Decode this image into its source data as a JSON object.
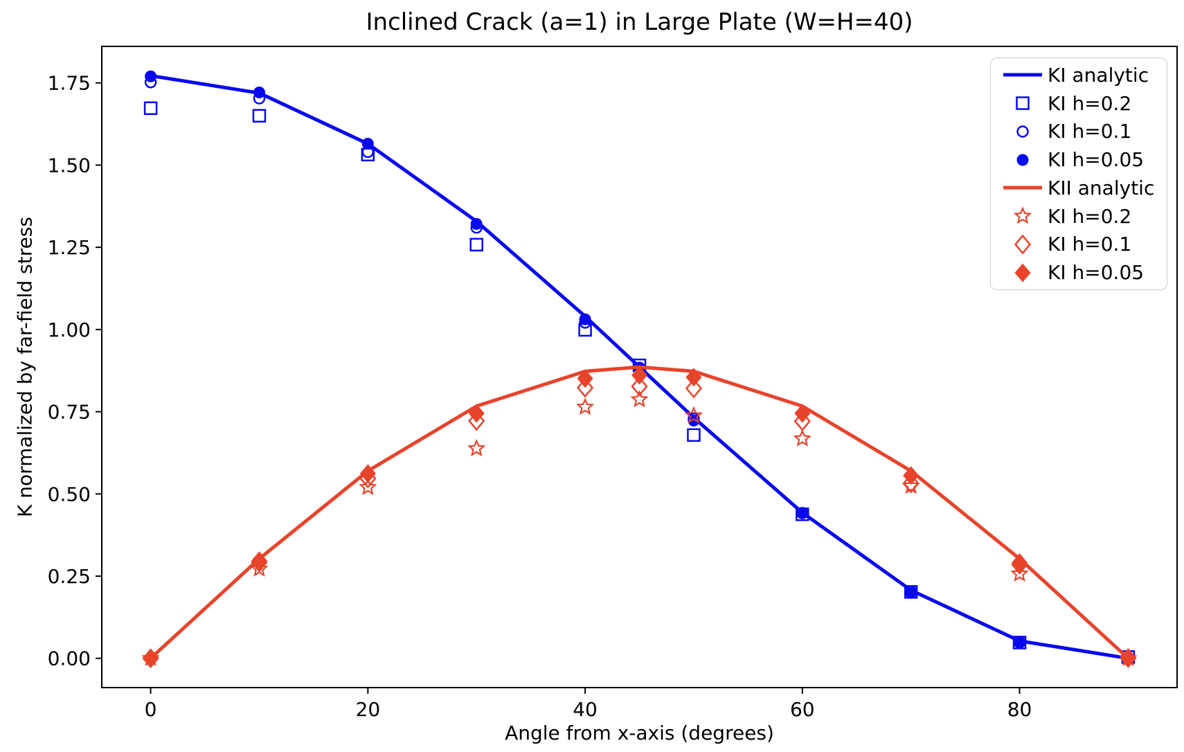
{
  "chart_data": {
    "type": "line",
    "title": "Inclined Crack (a=1) in Large Plate (W=H=40)",
    "xlabel": "Angle from x-axis (degrees)",
    "ylabel": "K normalized by far-field stress",
    "xlim": [
      -4.5,
      94.5
    ],
    "ylim": [
      -0.089,
      1.861
    ],
    "xticks": [
      0,
      20,
      40,
      60,
      80
    ],
    "xtick_labels": [
      "0",
      "20",
      "40",
      "60",
      "80"
    ],
    "yticks": [
      0.0,
      0.25,
      0.5,
      0.75,
      1.0,
      1.25,
      1.5,
      1.75
    ],
    "ytick_labels": [
      "0.00",
      "0.25",
      "0.50",
      "0.75",
      "1.00",
      "1.25",
      "1.50",
      "1.75"
    ],
    "grid": false,
    "legend_position": "upper right",
    "colors": {
      "KI": "#0808f0",
      "KII": "#e8432b"
    },
    "x": [
      0,
      10,
      20,
      30,
      40,
      45,
      50,
      60,
      70,
      80,
      90
    ],
    "series": [
      {
        "name": "KI analytic",
        "color": "#0808f0",
        "style": "line",
        "values": [
          1.772,
          1.719,
          1.565,
          1.329,
          1.04,
          0.886,
          0.732,
          0.443,
          0.207,
          0.053,
          0.0
        ]
      },
      {
        "name": "KI h=0.2",
        "color": "#0808f0",
        "style": "square-open",
        "values": [
          1.673,
          1.65,
          1.532,
          1.258,
          0.999,
          0.891,
          0.679,
          0.438,
          0.202,
          0.048,
          0.004
        ]
      },
      {
        "name": "KI h=0.1",
        "color": "#0808f0",
        "style": "circle-open",
        "values": [
          1.752,
          1.703,
          1.54,
          1.31,
          1.021,
          0.883,
          0.729,
          0.442,
          0.204,
          0.05,
          0.002
        ]
      },
      {
        "name": "KI h=0.05",
        "color": "#0808f0",
        "style": "circle-filled",
        "values": [
          1.77,
          1.721,
          1.565,
          1.321,
          1.031,
          0.884,
          0.723,
          0.441,
          0.199,
          0.047,
          0.001
        ]
      },
      {
        "name": "KII analytic",
        "color": "#e8432b",
        "style": "line",
        "values": [
          0.0,
          0.303,
          0.57,
          0.767,
          0.873,
          0.886,
          0.873,
          0.767,
          0.57,
          0.303,
          0.0
        ]
      },
      {
        "name": "KI h=0.2",
        "color": "#e8432b",
        "style": "star-open",
        "values": [
          0.0,
          0.272,
          0.52,
          0.638,
          0.764,
          0.787,
          0.738,
          0.668,
          0.524,
          0.257,
          0.0
        ]
      },
      {
        "name": "KI h=0.1",
        "color": "#e8432b",
        "style": "diamond-open",
        "values": [
          0.0,
          0.292,
          0.547,
          0.722,
          0.823,
          0.827,
          0.821,
          0.721,
          0.532,
          0.285,
          0.001
        ]
      },
      {
        "name": "KI h=0.05",
        "color": "#e8432b",
        "style": "diamond-filled",
        "values": [
          0.001,
          0.297,
          0.562,
          0.745,
          0.851,
          0.861,
          0.855,
          0.745,
          0.556,
          0.291,
          0.002
        ]
      }
    ]
  }
}
